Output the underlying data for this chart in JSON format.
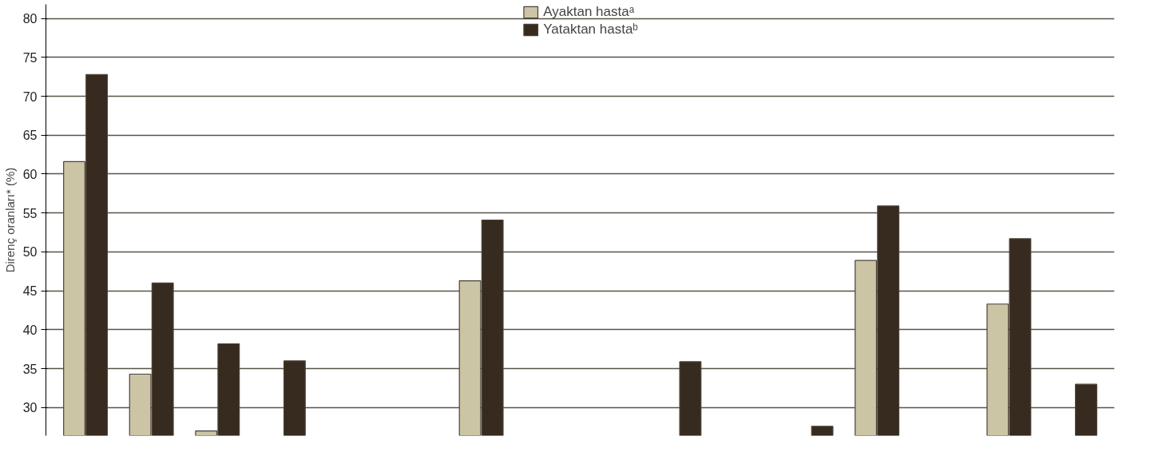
{
  "chart_data": {
    "type": "bar",
    "ylabel": "Direnç oranları* (%)",
    "categories": [
      null,
      null,
      null,
      null,
      null,
      null,
      null,
      null,
      null,
      null,
      null,
      null,
      null,
      null,
      null,
      null
    ],
    "series": [
      {
        "name": "Ayaktan hastaᵃ",
        "color": "#cbc5a6",
        "values": [
          61.6,
          34.3,
          27.0,
          null,
          null,
          null,
          46.3,
          null,
          null,
          null,
          null,
          null,
          48.9,
          null,
          43.3,
          null
        ]
      },
      {
        "name": "Yataktan hastaᵇ",
        "color": "#372b1f",
        "values": [
          72.8,
          46.0,
          38.2,
          36.0,
          null,
          null,
          54.1,
          null,
          null,
          35.9,
          null,
          27.6,
          55.9,
          null,
          51.7,
          33.0
        ]
      }
    ],
    "ylim": [
      26.4,
      81.8
    ],
    "yticks": [
      30,
      35,
      40,
      45,
      50,
      55,
      60,
      65,
      70,
      75,
      80
    ],
    "grid": "y",
    "legend": "top",
    "tick_labels": "y"
  }
}
